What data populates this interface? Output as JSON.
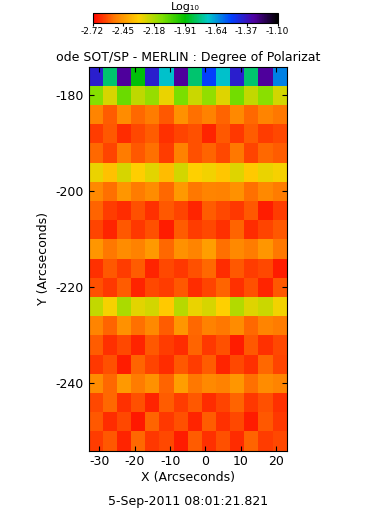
{
  "chart_data": {
    "type": "heatmap",
    "title": "ode SOT/SP - MERLIN : Degree of Polarizat",
    "x_label": "X (Arcseconds)",
    "y_label": "Y (Arcseconds)",
    "annotation": "5-Sep-2011 08:01:21.821",
    "xlim": [
      -33,
      23
    ],
    "ylim": [
      -254,
      -174
    ],
    "xticks": [
      -30,
      -20,
      -10,
      0,
      10,
      20
    ],
    "yticks": [
      -240,
      -220,
      -200,
      -180
    ],
    "x_edges": [
      -33,
      -29,
      -25,
      -21,
      -17,
      -13,
      -9,
      -5,
      -1,
      3,
      7,
      11,
      15,
      19,
      23
    ],
    "y_edges": [
      -254,
      -250,
      -246,
      -242,
      -238,
      -234,
      -230,
      -226,
      -222,
      -218,
      -214,
      -210,
      -206,
      -202,
      -198,
      -194,
      -190,
      -186,
      -182,
      -178,
      -174
    ],
    "cells": [
      [
        -2.62,
        -2.58,
        -2.66,
        -2.55,
        -2.63,
        -2.6,
        -2.67,
        -2.57,
        -2.64,
        -2.59,
        -2.65,
        -2.56,
        -2.62,
        -2.6
      ],
      [
        -2.58,
        -2.65,
        -2.6,
        -2.68,
        -2.56,
        -2.63,
        -2.59,
        -2.66,
        -2.57,
        -2.64,
        -2.6,
        -2.67,
        -2.58,
        -2.63
      ],
      [
        -2.6,
        -2.55,
        -2.64,
        -2.59,
        -2.66,
        -2.57,
        -2.62,
        -2.58,
        -2.65,
        -2.61,
        -2.56,
        -2.63,
        -2.59,
        -2.64
      ],
      [
        -2.48,
        -2.55,
        -2.45,
        -2.52,
        -2.47,
        -2.56,
        -2.44,
        -2.53,
        -2.49,
        -2.51,
        -2.46,
        -2.54,
        -2.48,
        -2.5
      ],
      [
        -2.63,
        -2.59,
        -2.67,
        -2.56,
        -2.61,
        -2.65,
        -2.58,
        -2.62,
        -2.57,
        -2.66,
        -2.6,
        -2.64,
        -2.55,
        -2.61
      ],
      [
        -2.57,
        -2.64,
        -2.6,
        -2.66,
        -2.58,
        -2.62,
        -2.65,
        -2.56,
        -2.63,
        -2.59,
        -2.67,
        -2.58,
        -2.64,
        -2.6
      ],
      [
        -2.5,
        -2.56,
        -2.47,
        -2.54,
        -2.49,
        -2.57,
        -2.46,
        -2.55,
        -2.51,
        -2.53,
        -2.48,
        -2.55,
        -2.5,
        -2.52
      ],
      [
        -2.22,
        -2.3,
        -2.18,
        -2.27,
        -2.24,
        -2.33,
        -2.2,
        -2.28,
        -2.25,
        -2.31,
        -2.19,
        -2.26,
        -2.23,
        -2.29
      ],
      [
        -2.59,
        -2.63,
        -2.57,
        -2.66,
        -2.6,
        -2.62,
        -2.58,
        -2.65,
        -2.61,
        -2.56,
        -2.64,
        -2.59,
        -2.66,
        -2.58
      ],
      [
        -2.64,
        -2.58,
        -2.62,
        -2.57,
        -2.66,
        -2.6,
        -2.63,
        -2.59,
        -2.55,
        -2.65,
        -2.58,
        -2.62,
        -2.6,
        -2.67
      ],
      [
        -2.46,
        -2.53,
        -2.48,
        -2.51,
        -2.45,
        -2.55,
        -2.47,
        -2.5,
        -2.44,
        -2.54,
        -2.49,
        -2.52,
        -2.46,
        -2.53
      ],
      [
        -2.61,
        -2.66,
        -2.58,
        -2.63,
        -2.59,
        -2.67,
        -2.57,
        -2.62,
        -2.6,
        -2.64,
        -2.56,
        -2.65,
        -2.61,
        -2.58
      ],
      [
        -2.56,
        -2.62,
        -2.65,
        -2.59,
        -2.64,
        -2.58,
        -2.61,
        -2.66,
        -2.57,
        -2.6,
        -2.63,
        -2.58,
        -2.67,
        -2.62
      ],
      [
        -2.49,
        -2.54,
        -2.46,
        -2.52,
        -2.48,
        -2.55,
        -2.45,
        -2.53,
        -2.5,
        -2.51,
        -2.47,
        -2.54,
        -2.49,
        -2.52
      ],
      [
        -2.28,
        -2.35,
        -2.25,
        -2.32,
        -2.27,
        -2.36,
        -2.24,
        -2.31,
        -2.29,
        -2.34,
        -2.26,
        -2.33,
        -2.28,
        -2.3
      ],
      [
        -2.55,
        -2.61,
        -2.52,
        -2.58,
        -2.54,
        -2.62,
        -2.51,
        -2.59,
        -2.56,
        -2.6,
        -2.53,
        -2.61,
        -2.55,
        -2.57
      ],
      [
        -2.62,
        -2.58,
        -2.65,
        -2.6,
        -2.57,
        -2.64,
        -2.61,
        -2.59,
        -2.66,
        -2.58,
        -2.63,
        -2.57,
        -2.62,
        -2.6
      ],
      [
        -2.5,
        -2.57,
        -2.48,
        -2.55,
        -2.52,
        -2.58,
        -2.47,
        -2.54,
        -2.51,
        -2.56,
        -2.49,
        -2.55,
        -2.5,
        -2.53
      ],
      [
        -2.12,
        -2.25,
        -2.08,
        -2.21,
        -2.15,
        -2.28,
        -2.1,
        -2.23,
        -2.14,
        -2.26,
        -2.09,
        -2.22,
        -2.13,
        -2.24
      ],
      [
        -1.4,
        -1.8,
        -1.3,
        -1.9,
        -1.4,
        -1.7,
        -1.3,
        -1.8,
        -1.5,
        -1.7,
        -1.4,
        -1.8,
        -1.3,
        -1.6
      ]
    ],
    "colorbar": {
      "label": "Log₁₀",
      "range": [
        -2.72,
        -1.1
      ],
      "ticks": [
        -2.72,
        -2.45,
        -2.18,
        -1.91,
        -1.64,
        -1.37,
        {
          "value": -1.1,
          "label": "-1.10"
        }
      ]
    }
  }
}
